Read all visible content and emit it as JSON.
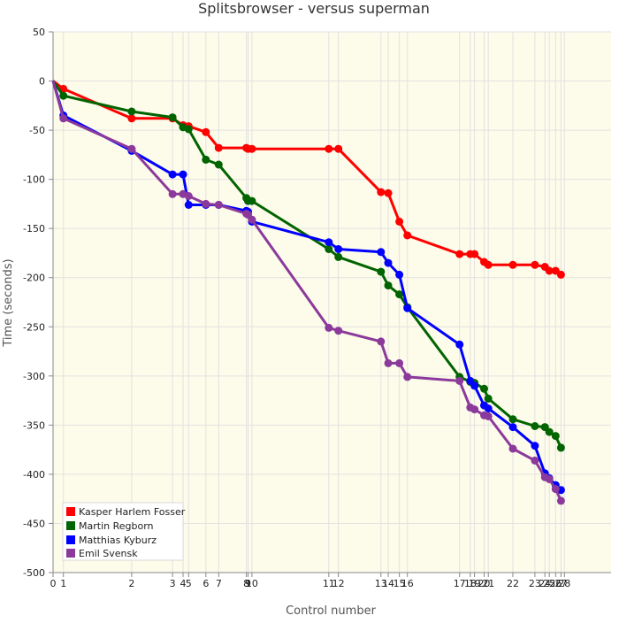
{
  "chart_data": {
    "type": "line",
    "title": "Splitsbrowser - versus superman",
    "xlabel": "Control number",
    "ylabel": "Time (seconds)",
    "ylim": [
      -500,
      50
    ],
    "xlim": [
      0,
      2910
    ],
    "yticks": [
      50,
      0,
      -50,
      -100,
      -150,
      -200,
      -250,
      -300,
      -350,
      -400,
      -450,
      -500
    ],
    "xticks": [
      {
        "label": "0",
        "x": 0
      },
      {
        "label": "1",
        "x": 54
      },
      {
        "label": "2",
        "x": 410
      },
      {
        "label": "3",
        "x": 623
      },
      {
        "label": "4",
        "x": 678
      },
      {
        "label": "5",
        "x": 707
      },
      {
        "label": "6",
        "x": 797
      },
      {
        "label": "7",
        "x": 864
      },
      {
        "label": "8",
        "x": 1008
      },
      {
        "label": "9",
        "x": 1017
      },
      {
        "label": "10",
        "x": 1037
      },
      {
        "label": "11",
        "x": 1438
      },
      {
        "label": "12",
        "x": 1488
      },
      {
        "label": "13",
        "x": 1710
      },
      {
        "label": "14",
        "x": 1748
      },
      {
        "label": "15",
        "x": 1806
      },
      {
        "label": "16",
        "x": 1848
      },
      {
        "label": "17",
        "x": 2120
      },
      {
        "label": "18",
        "x": 2176
      },
      {
        "label": "19",
        "x": 2198
      },
      {
        "label": "20",
        "x": 2248
      },
      {
        "label": "21",
        "x": 2270
      },
      {
        "label": "22",
        "x": 2398
      },
      {
        "label": "23",
        "x": 2513
      },
      {
        "label": "24",
        "x": 2565
      },
      {
        "label": "25",
        "x": 2588
      },
      {
        "label": "26",
        "x": 2621
      },
      {
        "label": "27",
        "x": 2649
      },
      {
        "label": "28",
        "x": 2667
      }
    ],
    "grid": true,
    "legend_position": "bottom-left",
    "series": [
      {
        "name": "Kasper Harlem Fosser",
        "color": "#ff0000",
        "values": [
          0,
          -8,
          -38,
          -38,
          -45,
          -46,
          -52,
          -68,
          -68,
          -69,
          -69,
          -69,
          -69,
          -113,
          -114,
          -143,
          -157,
          -176,
          -176,
          -176,
          -184,
          -187,
          -187,
          -187,
          -189,
          -193,
          -193,
          -197
        ]
      },
      {
        "name": "Martin Regborn",
        "color": "#006400",
        "values": [
          0,
          -15,
          -31,
          -37,
          -47,
          -49,
          -80,
          -85,
          -119,
          -122,
          -122,
          -171,
          -179,
          -194,
          -208,
          -217,
          -230,
          -301,
          -306,
          -307,
          -313,
          -323,
          -344,
          -351,
          -352,
          -357,
          -361,
          -373
        ]
      },
      {
        "name": "Matthias Kyburz",
        "color": "#0000ff",
        "values": [
          0,
          -35,
          -71,
          -95,
          -95,
          -126,
          -126,
          -126,
          -132,
          -133,
          -143,
          -164,
          -171,
          -174,
          -185,
          -197,
          -231,
          -268,
          -305,
          -310,
          -330,
          -333,
          -352,
          -371,
          -399,
          -404,
          -411,
          -416
        ]
      },
      {
        "name": "Emil Svensk",
        "color": "#8b3a9b",
        "values": [
          0,
          -38,
          -69,
          -115,
          -115,
          -117,
          -125,
          -126,
          -135,
          -136,
          -141,
          -251,
          -254,
          -265,
          -287,
          -287,
          -301,
          -305,
          -332,
          -334,
          -340,
          -341,
          -374,
          -386,
          -403,
          -405,
          -415,
          -427
        ]
      }
    ]
  }
}
